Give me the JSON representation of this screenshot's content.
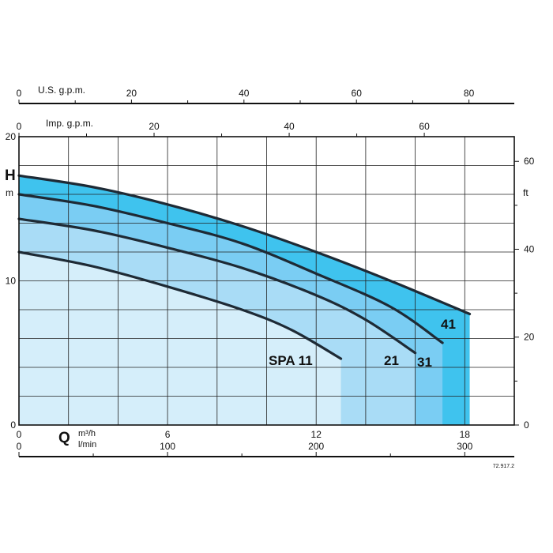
{
  "chart_data": {
    "type": "area",
    "x_axis_primary": {
      "symbol": "Q",
      "unit": "m³/h",
      "ticks": [
        0,
        6,
        12,
        18
      ],
      "range": [
        0,
        20
      ]
    },
    "x_axis_secondary": {
      "unit": "l/min",
      "ticks": [
        0,
        100,
        200,
        300
      ]
    },
    "x_axis_top_us": {
      "label": "U.S. g.p.m.",
      "ticks": [
        0,
        20,
        40,
        60,
        80
      ]
    },
    "x_axis_top_imp": {
      "label": "Imp. g.p.m.",
      "ticks": [
        0,
        20,
        40,
        60
      ]
    },
    "y_axis_left": {
      "symbol": "H",
      "unit": "m",
      "ticks": [
        0,
        10,
        20
      ],
      "range": [
        0,
        20
      ]
    },
    "y_axis_right": {
      "unit": "ft",
      "ticks": [
        0,
        20,
        40,
        60
      ]
    },
    "series": [
      {
        "name": "SPA 11",
        "color": "#d5eefa",
        "x": [
          0,
          3,
          6,
          9,
          11,
          13
        ],
        "y": [
          12.0,
          11.0,
          9.6,
          8.0,
          6.6,
          4.6
        ]
      },
      {
        "name": "21",
        "color": "#a9dcf6",
        "x": [
          0,
          3,
          6,
          9,
          12,
          14,
          16
        ],
        "y": [
          14.3,
          13.5,
          12.3,
          10.9,
          9.0,
          7.3,
          5.0
        ]
      },
      {
        "name": "31",
        "color": "#7acdf3",
        "x": [
          0,
          3,
          6,
          9,
          12,
          15,
          17.1
        ],
        "y": [
          16.0,
          15.2,
          14.0,
          12.6,
          10.5,
          8.2,
          5.7
        ]
      },
      {
        "name": "41",
        "color": "#3fc3ee",
        "x": [
          0,
          3,
          6,
          9,
          12,
          15,
          18.2
        ],
        "y": [
          17.3,
          16.5,
          15.3,
          13.8,
          12.0,
          10.0,
          7.7
        ]
      }
    ],
    "grid": true
  },
  "footnote": "72.917.2"
}
